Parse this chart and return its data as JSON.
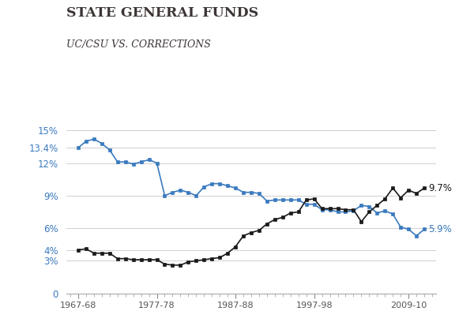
{
  "title": "STATE GENERAL FUNDS",
  "subtitle": "UC/CSU VS. CORRECTIONS",
  "title_color": "#3d3535",
  "subtitle_color": "#3d3535",
  "blue_color": "#3a7abf",
  "black_color": "#1a1a1a",
  "background_color": "#ffffff",
  "yticks": [
    0,
    3,
    4,
    6,
    9,
    12,
    13.4,
    15
  ],
  "ytick_labels": [
    "0",
    "3%",
    "4%",
    "6%",
    "9%",
    "12%",
    "13.4%",
    "15%"
  ],
  "xtick_positions": [
    1967,
    1977,
    1987,
    1997,
    2009
  ],
  "xtick_labels": [
    "1967-68",
    "1977-78",
    "1987-88",
    "1997-98",
    "2009-10"
  ],
  "ylim": [
    0,
    16.2
  ],
  "xlim_left": 1965.5,
  "xlim_right": 2012.5,
  "annotation_blue_label": "5.9%",
  "annotation_black_label": "9.7%",
  "uc_csu_data": [
    13.4,
    14.0,
    14.2,
    13.8,
    13.2,
    12.1,
    12.1,
    11.9,
    12.1,
    12.3,
    12.0,
    9.0,
    9.3,
    9.5,
    9.3,
    9.0,
    9.8,
    10.1,
    10.1,
    9.9,
    9.7,
    9.3,
    9.3,
    9.2,
    8.5,
    8.6,
    8.6,
    8.6,
    8.6,
    8.2,
    8.2,
    7.7,
    7.7,
    7.5,
    7.5,
    7.6,
    8.1,
    8.0,
    7.4,
    7.6,
    7.3,
    6.1,
    5.9,
    5.3,
    5.9
  ],
  "corrections_data": [
    4.0,
    4.1,
    3.7,
    3.7,
    3.7,
    3.2,
    3.2,
    3.1,
    3.1,
    3.1,
    3.1,
    2.7,
    2.6,
    2.6,
    2.9,
    3.0,
    3.1,
    3.2,
    3.3,
    3.7,
    4.3,
    5.3,
    5.6,
    5.8,
    6.4,
    6.8,
    7.0,
    7.4,
    7.5,
    8.6,
    8.7,
    7.8,
    7.8,
    7.8,
    7.7,
    7.7,
    6.6,
    7.5,
    8.1,
    8.7,
    9.7,
    8.8,
    9.5,
    9.2,
    9.7
  ],
  "start_year": 1967
}
